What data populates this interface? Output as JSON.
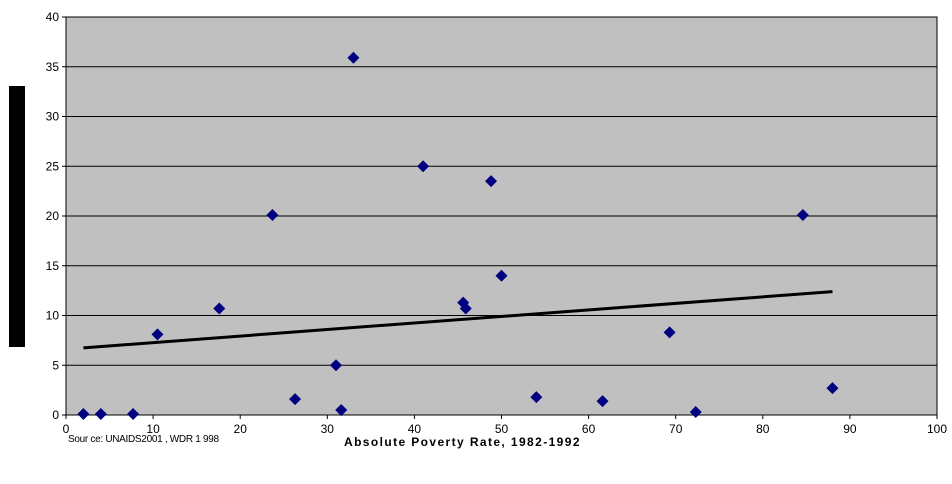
{
  "chart_data": {
    "type": "scatter",
    "xlabel": "Absolute Poverty Rate, 1982-1992",
    "ylabel": "",
    "source": "Sour ce:  UNAIDS2001 , WDR 1 998",
    "xlim": [
      0,
      100
    ],
    "ylim": [
      0,
      40
    ],
    "x_ticks": [
      0,
      10,
      20,
      30,
      40,
      50,
      60,
      70,
      80,
      90,
      100
    ],
    "y_ticks": [
      0,
      5,
      10,
      15,
      20,
      25,
      30,
      35,
      40
    ],
    "grid": "horizontal",
    "colors": {
      "plot_bg": "#c0c0c0",
      "marker": "#000080",
      "trendline": "#000000"
    },
    "series": [
      {
        "marker": "diamond",
        "points": [
          {
            "x": 2,
            "y": 0.1
          },
          {
            "x": 4,
            "y": 0.1
          },
          {
            "x": 7.7,
            "y": 0.1
          },
          {
            "x": 10.5,
            "y": 8.1
          },
          {
            "x": 17.6,
            "y": 10.7
          },
          {
            "x": 23.7,
            "y": 20.1
          },
          {
            "x": 26.3,
            "y": 1.6
          },
          {
            "x": 31,
            "y": 5.0
          },
          {
            "x": 31.6,
            "y": 0.5
          },
          {
            "x": 33,
            "y": 35.9
          },
          {
            "x": 41,
            "y": 25.0
          },
          {
            "x": 45.6,
            "y": 11.3
          },
          {
            "x": 45.9,
            "y": 10.7
          },
          {
            "x": 48.8,
            "y": 23.5
          },
          {
            "x": 50,
            "y": 14.0
          },
          {
            "x": 54,
            "y": 1.8
          },
          {
            "x": 61.6,
            "y": 1.4
          },
          {
            "x": 69.3,
            "y": 8.3
          },
          {
            "x": 72.3,
            "y": 0.3
          },
          {
            "x": 84.6,
            "y": 20.1
          },
          {
            "x": 88,
            "y": 2.7
          }
        ]
      }
    ],
    "trendline": {
      "type": "linear",
      "x_start": 2,
      "y_start": 6.75,
      "x_end": 88,
      "y_end": 12.4
    }
  }
}
